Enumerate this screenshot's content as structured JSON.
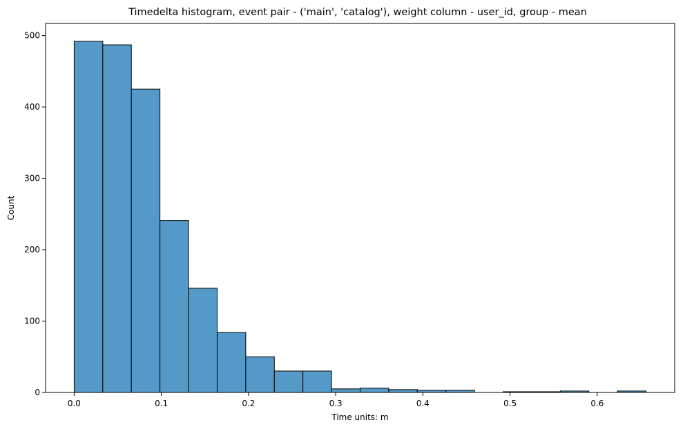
{
  "chart_data": {
    "type": "bar",
    "title": "Timedelta histogram, event pair - ('main', 'catalog'), weight column - user_id, group - mean",
    "xlabel": "Time units: m",
    "ylabel": "Count",
    "xlim": [
      -0.0328,
      0.6888
    ],
    "ylim": [
      0,
      517
    ],
    "x_ticks": [
      0.0,
      0.1,
      0.2,
      0.3,
      0.4,
      0.5,
      0.6
    ],
    "x_tick_labels": [
      "0.0",
      "0.1",
      "0.2",
      "0.3",
      "0.4",
      "0.5",
      "0.6"
    ],
    "y_ticks": [
      0,
      100,
      200,
      300,
      400,
      500
    ],
    "y_tick_labels": [
      "0",
      "100",
      "200",
      "300",
      "400",
      "500"
    ],
    "bin_edges": [
      0.0,
      0.0328,
      0.0656,
      0.0984,
      0.1312,
      0.164,
      0.1968,
      0.2296,
      0.2624,
      0.2952,
      0.328,
      0.3608,
      0.3936,
      0.4264,
      0.4592,
      0.492,
      0.5248,
      0.5576,
      0.5904,
      0.6232,
      0.656
    ],
    "values": [
      492,
      487,
      425,
      241,
      146,
      84,
      50,
      30,
      30,
      5,
      6,
      4,
      3,
      3,
      0,
      1,
      1,
      2,
      0,
      2
    ],
    "grid": false,
    "bar_color": "#5499c7",
    "edge_color": "#000000"
  }
}
